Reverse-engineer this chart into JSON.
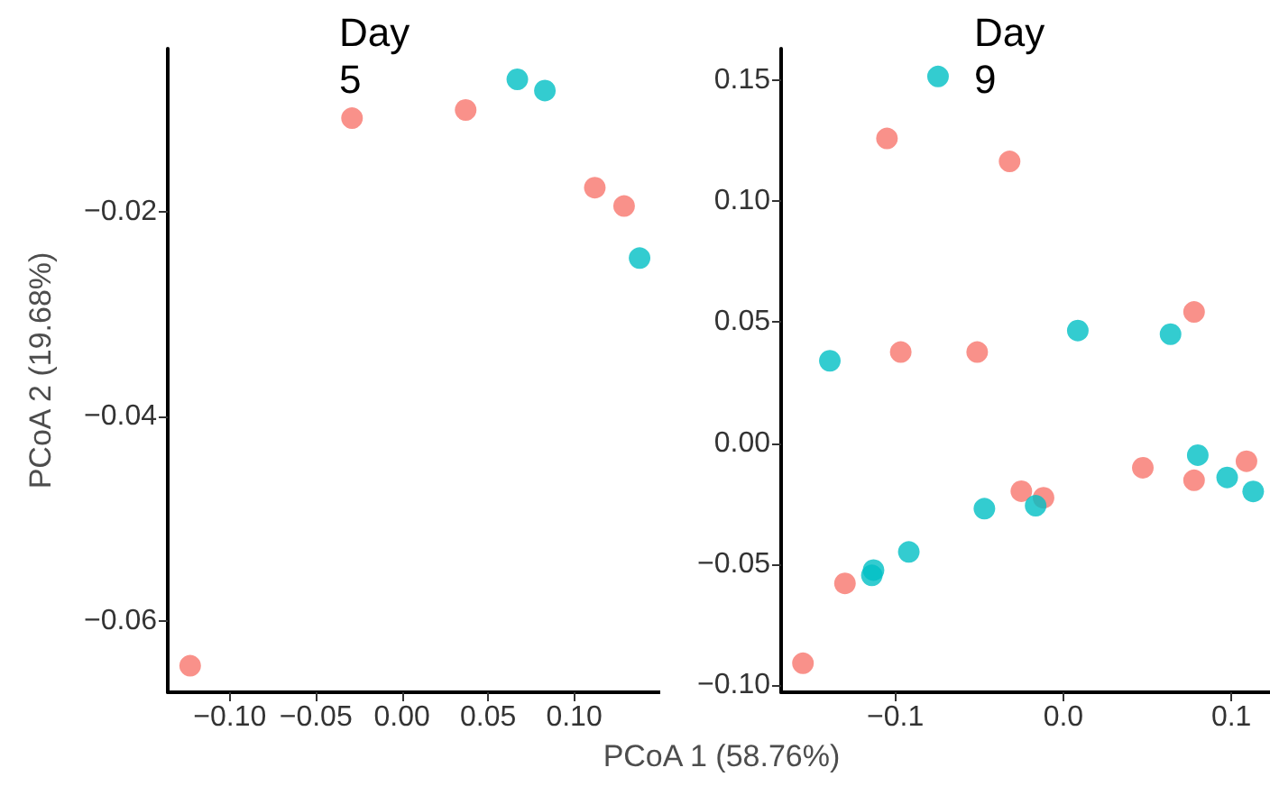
{
  "chart_data": [
    {
      "type": "scatter",
      "title": "Day\n5",
      "ylabel": "PCoA 2 (19.68%)",
      "marker": "circle",
      "xlim": [
        -0.136,
        0.15
      ],
      "ylim": [
        -0.067,
        -0.004
      ],
      "xticks": [
        {
          "value": -0.1,
          "label": "−0.10"
        },
        {
          "value": -0.05,
          "label": "−0.05"
        },
        {
          "value": 0,
          "label": "0.00"
        },
        {
          "value": 0.05,
          "label": "0.05"
        },
        {
          "value": 0.1,
          "label": "0.10"
        }
      ],
      "yticks": [
        {
          "value": -0.06,
          "label": "−0.06"
        },
        {
          "value": -0.04,
          "label": "−0.04"
        },
        {
          "value": -0.02,
          "label": "−0.02"
        }
      ],
      "series": [
        {
          "color": "#f8766d",
          "x": [
            -0.029,
            0.037,
            0.112,
            0.129,
            -0.123
          ],
          "values": [
            -0.0108,
            -0.01,
            -0.0176,
            -0.0194,
            -0.0644
          ]
        },
        {
          "color": "#00bfc4",
          "x": [
            0.067,
            0.083,
            0.138
          ],
          "values": [
            -0.007,
            -0.0081,
            -0.0245
          ]
        }
      ]
    },
    {
      "type": "scatter",
      "title": "Day\n9",
      "xlabel": "PCoA 1 (58.76%)",
      "marker": "circle",
      "xlim": [
        -0.168,
        0.123
      ],
      "ylim": [
        -0.103,
        0.163
      ],
      "xticks": [
        {
          "value": -0.1,
          "label": "−0.1"
        },
        {
          "value": 0,
          "label": "0.0"
        },
        {
          "value": 0.1,
          "label": "0.1"
        }
      ],
      "yticks": [
        {
          "value": -0.1,
          "label": "−0.10"
        },
        {
          "value": -0.05,
          "label": "−0.05"
        },
        {
          "value": 0,
          "label": "0.00"
        },
        {
          "value": 0.05,
          "label": "0.05"
        },
        {
          "value": 0.1,
          "label": "0.10"
        },
        {
          "value": 0.15,
          "label": "0.15"
        }
      ],
      "series": [
        {
          "color": "#f8766d",
          "x": [
            -0.105,
            -0.032,
            -0.0968,
            -0.0513,
            0.0778,
            0.0473,
            0.0778,
            0.109,
            -0.025,
            -0.0118,
            -0.13,
            -0.155
          ],
          "values": [
            0.1259,
            0.1164,
            0.0376,
            0.0376,
            0.0542,
            -0.0102,
            -0.0154,
            -0.0075,
            -0.0199,
            -0.0226,
            -0.058,
            -0.091
          ]
        },
        {
          "color": "#00bfc4",
          "x": [
            -0.0746,
            -0.139,
            0.0086,
            0.0638,
            0.08,
            0.0975,
            0.113,
            -0.0165,
            -0.047,
            -0.092,
            -0.113,
            -0.114
          ],
          "values": [
            0.1515,
            0.034,
            0.0465,
            0.045,
            -0.005,
            -0.0142,
            -0.02,
            -0.0259,
            -0.0271,
            -0.045,
            -0.0525,
            -0.0547
          ]
        }
      ]
    }
  ]
}
